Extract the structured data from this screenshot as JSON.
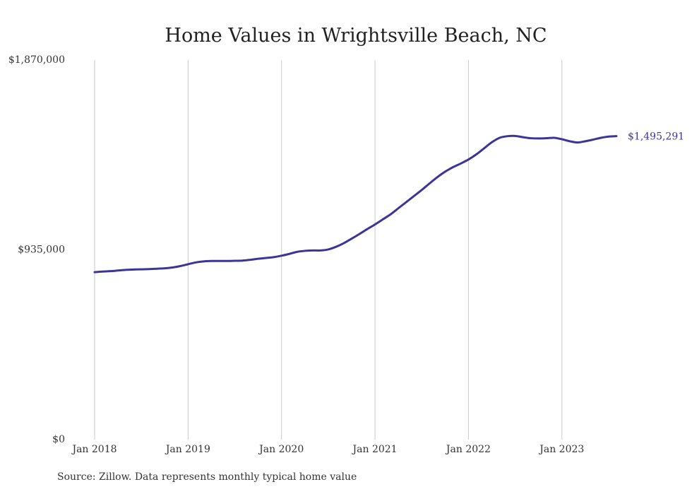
{
  "chart_data": {
    "type": "line",
    "title": "Home Values in Wrightsville Beach, NC",
    "xlabel": "",
    "ylabel": "",
    "ylim": [
      0,
      1870000
    ],
    "xlim": [
      "2018-01",
      "2023-08"
    ],
    "y_ticks": [
      "$0",
      "$935,000",
      "$1,870,000"
    ],
    "y_tick_values": [
      0,
      935000,
      1870000
    ],
    "x_ticks": [
      "Jan 2018",
      "Jan 2019",
      "Jan 2020",
      "Jan 2021",
      "Jan 2022",
      "Jan 2023"
    ],
    "grid": "vertical lines at x ticks",
    "line_color": "#3b3598",
    "end_label": "$1,495,291",
    "series": [
      {
        "x": [
          "2018-01",
          "2018-02",
          "2018-03",
          "2018-04",
          "2018-05",
          "2018-06",
          "2018-07",
          "2018-08",
          "2018-09",
          "2018-10",
          "2018-11",
          "2018-12",
          "2019-01",
          "2019-02",
          "2019-03",
          "2019-04",
          "2019-05",
          "2019-06",
          "2019-07",
          "2019-08",
          "2019-09",
          "2019-10",
          "2019-11",
          "2019-12",
          "2020-01",
          "2020-02",
          "2020-03",
          "2020-04",
          "2020-05",
          "2020-06",
          "2020-07",
          "2020-08",
          "2020-09",
          "2020-10",
          "2020-11",
          "2020-12",
          "2021-01",
          "2021-02",
          "2021-03",
          "2021-04",
          "2021-05",
          "2021-06",
          "2021-07",
          "2021-08",
          "2021-09",
          "2021-10",
          "2021-11",
          "2021-12",
          "2022-01",
          "2022-02",
          "2022-03",
          "2022-04",
          "2022-05",
          "2022-06",
          "2022-07",
          "2022-08",
          "2022-09",
          "2022-10",
          "2022-11",
          "2022-12",
          "2023-01",
          "2023-02",
          "2023-03",
          "2023-04",
          "2023-05",
          "2023-06",
          "2023-07",
          "2023-08"
        ],
        "values": [
          825000,
          828000,
          830000,
          833000,
          836000,
          838000,
          839000,
          840000,
          842000,
          844000,
          848000,
          855000,
          864000,
          873000,
          878000,
          880000,
          880000,
          880000,
          881000,
          882000,
          886000,
          891000,
          895000,
          899000,
          906000,
          915000,
          925000,
          930000,
          932000,
          932000,
          937000,
          950000,
          968000,
          990000,
          1013000,
          1037000,
          1060000,
          1085000,
          1110000,
          1140000,
          1170000,
          1200000,
          1230000,
          1262000,
          1293000,
          1320000,
          1342000,
          1360000,
          1380000,
          1405000,
          1435000,
          1465000,
          1487000,
          1495000,
          1496000,
          1490000,
          1485000,
          1484000,
          1485000,
          1487000,
          1480000,
          1470000,
          1464000,
          1470000,
          1478000,
          1487000,
          1493000,
          1495291
        ]
      }
    ]
  },
  "source": "Source: Zillow. Data represents monthly typical home value"
}
